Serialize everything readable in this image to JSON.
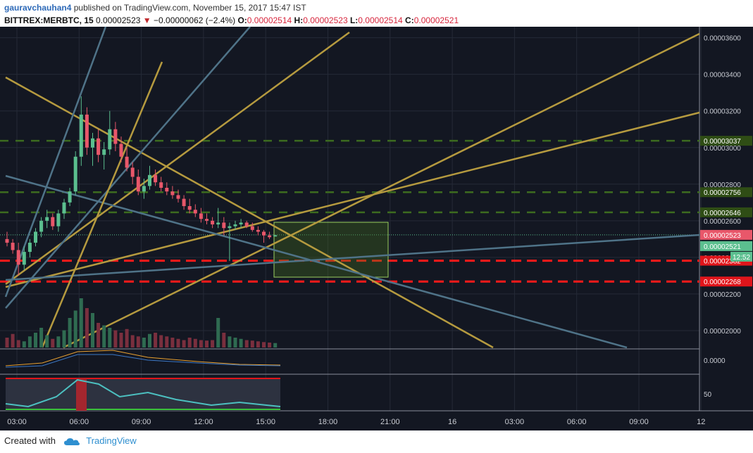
{
  "header": {
    "author": "gauravchauhan4",
    "published_text": "published on TradingView.com, November 15, 2017 15:47 IST",
    "symbol": "BITTREX:MERBTC, 15",
    "last": "0.00002523",
    "change": "−0.00000062 (−2.4%)",
    "o_label": "O:",
    "o_value": "0.00002514",
    "h_label": "H:",
    "h_value": "0.00002523",
    "l_label": "L:",
    "l_value": "0.00002514",
    "c_label": "C:",
    "c_value": "0.00002521"
  },
  "footer": {
    "created_with": "Created with",
    "brand": "TradingView"
  },
  "colors": {
    "background": "#131722",
    "grid": "#252a37",
    "up": "#5bbf8f",
    "down": "#e8576a",
    "support": "#ff1a1a",
    "resistance": "#3c6b1f",
    "trend_gold": "#b59a3f",
    "trend_blue": "#4f7388"
  },
  "chart_data": [
    {
      "type": "candlestick",
      "ylim": [
        1.9e-05,
        3.66e-05
      ],
      "x_ticks": [
        "03:00",
        "06:00",
        "09:00",
        "12:00",
        "15:00",
        "18:00",
        "21:00",
        "16",
        "03:00",
        "06:00",
        "09:00",
        "12"
      ],
      "y_ticks": [
        "0.00003600",
        "0.00003400",
        "0.00003200",
        "0.00003000",
        "0.00002800",
        "0.00002600",
        "0.00002400",
        "0.00002200",
        "0.00002000"
      ],
      "price_levels": [
        {
          "value": 3.037e-05,
          "label": "0.00003037",
          "style": "resistance"
        },
        {
          "value": 2.756e-05,
          "label": "0.00002756",
          "style": "resistance"
        },
        {
          "value": 2.646e-05,
          "label": "0.00002646",
          "style": "resistance"
        },
        {
          "value": 2.382e-05,
          "label": "0.00002382",
          "style": "support"
        },
        {
          "value": 2.268e-05,
          "label": "0.00002268",
          "style": "support"
        }
      ],
      "last_price": {
        "value": 2.523e-05,
        "label": "0.00002523"
      },
      "close_price": {
        "value": 2.521e-05,
        "label": "0.00002521"
      },
      "countdown": "12:52",
      "candles": [
        {
          "o": 2500,
          "h": 2540,
          "l": 2460,
          "c": 2480
        },
        {
          "o": 2480,
          "h": 2500,
          "l": 2420,
          "c": 2440
        },
        {
          "o": 2440,
          "h": 2480,
          "l": 2300,
          "c": 2360
        },
        {
          "o": 2360,
          "h": 2460,
          "l": 2330,
          "c": 2430
        },
        {
          "o": 2430,
          "h": 2500,
          "l": 2400,
          "c": 2480
        },
        {
          "o": 2480,
          "h": 2560,
          "l": 2460,
          "c": 2540
        },
        {
          "o": 2540,
          "h": 2620,
          "l": 2510,
          "c": 2600
        },
        {
          "o": 2600,
          "h": 2660,
          "l": 2560,
          "c": 2620
        },
        {
          "o": 2620,
          "h": 2640,
          "l": 2550,
          "c": 2570
        },
        {
          "o": 2570,
          "h": 2660,
          "l": 2540,
          "c": 2640
        },
        {
          "o": 2640,
          "h": 2720,
          "l": 2610,
          "c": 2700
        },
        {
          "o": 2700,
          "h": 2780,
          "l": 2680,
          "c": 2760
        },
        {
          "o": 2760,
          "h": 2980,
          "l": 2740,
          "c": 2950
        },
        {
          "o": 2950,
          "h": 3280,
          "l": 2900,
          "c": 3180
        },
        {
          "o": 3180,
          "h": 3220,
          "l": 2960,
          "c": 3000
        },
        {
          "o": 3000,
          "h": 3080,
          "l": 2900,
          "c": 3050
        },
        {
          "o": 3050,
          "h": 3100,
          "l": 2920,
          "c": 2960
        },
        {
          "o": 2960,
          "h": 3030,
          "l": 2880,
          "c": 2990
        },
        {
          "o": 2990,
          "h": 3200,
          "l": 2960,
          "c": 3100
        },
        {
          "o": 3100,
          "h": 3140,
          "l": 2980,
          "c": 3020
        },
        {
          "o": 3020,
          "h": 3060,
          "l": 2920,
          "c": 2950
        },
        {
          "o": 2950,
          "h": 3000,
          "l": 2870,
          "c": 2890
        },
        {
          "o": 2890,
          "h": 2920,
          "l": 2800,
          "c": 2840
        },
        {
          "o": 2840,
          "h": 2880,
          "l": 2740,
          "c": 2760
        },
        {
          "o": 2760,
          "h": 2830,
          "l": 2720,
          "c": 2790
        },
        {
          "o": 2790,
          "h": 2900,
          "l": 2770,
          "c": 2850
        },
        {
          "o": 2850,
          "h": 2880,
          "l": 2790,
          "c": 2810
        },
        {
          "o": 2810,
          "h": 2840,
          "l": 2760,
          "c": 2780
        },
        {
          "o": 2780,
          "h": 2810,
          "l": 2740,
          "c": 2760
        },
        {
          "o": 2760,
          "h": 2790,
          "l": 2720,
          "c": 2740
        },
        {
          "o": 2740,
          "h": 2770,
          "l": 2700,
          "c": 2720
        },
        {
          "o": 2720,
          "h": 2740,
          "l": 2660,
          "c": 2680
        },
        {
          "o": 2680,
          "h": 2720,
          "l": 2640,
          "c": 2660
        },
        {
          "o": 2660,
          "h": 2690,
          "l": 2620,
          "c": 2640
        },
        {
          "o": 2640,
          "h": 2670,
          "l": 2590,
          "c": 2610
        },
        {
          "o": 2610,
          "h": 2640,
          "l": 2580,
          "c": 2600
        },
        {
          "o": 2600,
          "h": 2620,
          "l": 2560,
          "c": 2580
        },
        {
          "o": 2580,
          "h": 2670,
          "l": 2560,
          "c": 2590
        },
        {
          "o": 2590,
          "h": 2620,
          "l": 2520,
          "c": 2560
        },
        {
          "o": 2560,
          "h": 2590,
          "l": 2380,
          "c": 2570
        },
        {
          "o": 2570,
          "h": 2600,
          "l": 2550,
          "c": 2580
        },
        {
          "o": 2580,
          "h": 2610,
          "l": 2560,
          "c": 2590
        },
        {
          "o": 2590,
          "h": 2600,
          "l": 2560,
          "c": 2570
        },
        {
          "o": 2570,
          "h": 2590,
          "l": 2540,
          "c": 2550
        },
        {
          "o": 2550,
          "h": 2570,
          "l": 2520,
          "c": 2540
        },
        {
          "o": 2540,
          "h": 2550,
          "l": 2480,
          "c": 2520
        },
        {
          "o": 2520,
          "h": 2540,
          "l": 2500,
          "c": 2510
        },
        {
          "o": 2514,
          "h": 2523,
          "l": 2514,
          "c": 2521
        }
      ],
      "volume": [
        40,
        55,
        30,
        25,
        45,
        60,
        80,
        50,
        35,
        45,
        70,
        120,
        150,
        200,
        160,
        140,
        100,
        90,
        80,
        70,
        60,
        75,
        50,
        45,
        40,
        55,
        60,
        50,
        45,
        40,
        35,
        30,
        40,
        35,
        30,
        28,
        30,
        120,
        60,
        45,
        40,
        35,
        30,
        28,
        25,
        22,
        20,
        18
      ],
      "osc_ticks": [
        "0.0000"
      ],
      "rsi_ticks": [
        "50"
      ]
    }
  ]
}
